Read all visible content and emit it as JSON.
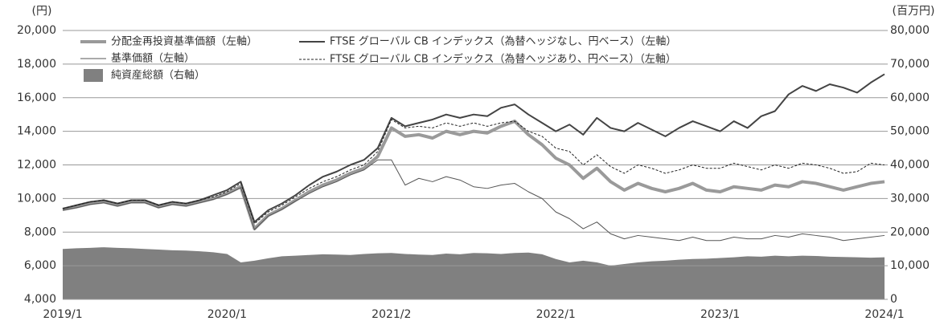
{
  "chart_data": {
    "type": "line",
    "y_unit": "(円)",
    "y2_unit": "(百万円)",
    "categories": [
      "2019/1",
      null,
      null,
      null,
      null,
      null,
      null,
      null,
      null,
      null,
      null,
      null,
      "2020/1",
      null,
      null,
      null,
      null,
      null,
      null,
      null,
      null,
      null,
      null,
      null,
      "2021/2",
      null,
      null,
      null,
      null,
      null,
      null,
      null,
      null,
      null,
      null,
      null,
      "2022/1",
      null,
      null,
      null,
      null,
      null,
      null,
      null,
      null,
      null,
      null,
      null,
      "2023/1",
      null,
      null,
      null,
      null,
      null,
      null,
      null,
      null,
      null,
      null,
      null,
      "2024/1"
    ],
    "ylim": [
      4000,
      20000
    ],
    "yticks": [
      {
        "value": 4000,
        "label": "4,000"
      },
      {
        "value": 6000,
        "label": "6,000"
      },
      {
        "value": 8000,
        "label": "8,000"
      },
      {
        "value": 10000,
        "label": "10,000"
      },
      {
        "value": 12000,
        "label": "12,000"
      },
      {
        "value": 14000,
        "label": "14,000"
      },
      {
        "value": 16000,
        "label": "16,000"
      },
      {
        "value": 18000,
        "label": "18,000"
      },
      {
        "value": 20000,
        "label": "20,000"
      }
    ],
    "y2lim": [
      0,
      80000
    ],
    "y2ticks": [
      0,
      {
        "value": 10000,
        "label": "10,000"
      },
      {
        "value": 20000,
        "label": "20,000"
      },
      {
        "value": 30000,
        "label": "30,000"
      },
      {
        "value": 40000,
        "label": "40,000"
      },
      {
        "value": 50000,
        "label": "50,000"
      },
      {
        "value": 60000,
        "label": "60,000"
      },
      {
        "value": 70000,
        "label": "70,000"
      },
      {
        "value": 80000,
        "label": "80,000"
      }
    ],
    "grid": true,
    "series": [
      {
        "name": "分配金再投資基準価額（左軸）",
        "color": "#9a9a9a",
        "line_width": 4,
        "dashed": false,
        "values": [
          9350,
          9500,
          9700,
          9800,
          9600,
          9800,
          9800,
          9500,
          9700,
          9600,
          9800,
          10000,
          10300,
          10700,
          8200,
          9000,
          9400,
          9900,
          10400,
          10800,
          11100,
          11500,
          11800,
          12500,
          14200,
          13700,
          13800,
          13600,
          14000,
          13800,
          14000,
          13900,
          14300,
          14600,
          13800,
          13200,
          12400,
          12000,
          11200,
          11800,
          11000,
          10500,
          10900,
          10600,
          10400,
          10600,
          10900,
          10500,
          10400,
          10700,
          10600,
          10500,
          10800,
          10700,
          11000,
          10900,
          10700,
          10500,
          10700,
          10900,
          11000
        ]
      },
      {
        "name": "基準価額（左軸）",
        "color": "#555555",
        "line_width": 1,
        "dashed": false,
        "values": [
          9300,
          9450,
          9650,
          9750,
          9550,
          9750,
          9750,
          9450,
          9650,
          9550,
          9750,
          9950,
          10250,
          10650,
          8150,
          8950,
          9350,
          9850,
          10300,
          10700,
          11000,
          11400,
          11700,
          12300,
          12300,
          10800,
          11200,
          11000,
          11300,
          11100,
          10700,
          10600,
          10800,
          10900,
          10400,
          10000,
          9200,
          8800,
          8200,
          8600,
          7900,
          7600,
          7800,
          7700,
          7600,
          7500,
          7700,
          7500,
          7500,
          7700,
          7600,
          7600,
          7800,
          7700,
          7900,
          7800,
          7700,
          7500,
          7600,
          7700,
          7800
        ]
      },
      {
        "name": "純資産総額（右軸）",
        "color": "#808080",
        "type": "area",
        "axis": "y2",
        "values": [
          15000,
          15200,
          15300,
          15500,
          15300,
          15200,
          15000,
          14800,
          14600,
          14500,
          14300,
          14000,
          13500,
          11000,
          11500,
          12200,
          12800,
          13000,
          13200,
          13400,
          13300,
          13200,
          13500,
          13700,
          13800,
          13500,
          13300,
          13200,
          13600,
          13400,
          13800,
          13700,
          13500,
          13800,
          13900,
          13400,
          12000,
          11000,
          11500,
          11000,
          10000,
          10500,
          11000,
          11300,
          11500,
          11800,
          12000,
          12100,
          12300,
          12500,
          12800,
          12700,
          13000,
          12800,
          13000,
          12900,
          12700,
          12600,
          12500,
          12400,
          12500
        ]
      },
      {
        "name": "FTSE グローバル CB インデックス（為替ヘッジなし、円ベース）（左軸）",
        "color": "#444444",
        "line_width": 2,
        "dashed": false,
        "values": [
          9400,
          9600,
          9800,
          9900,
          9700,
          9900,
          9900,
          9600,
          9800,
          9700,
          9900,
          10200,
          10500,
          11000,
          8600,
          9300,
          9700,
          10200,
          10800,
          11300,
          11600,
          12000,
          12300,
          13000,
          14800,
          14300,
          14500,
          14700,
          15000,
          14800,
          15000,
          14900,
          15400,
          15600,
          15000,
          14500,
          14000,
          14400,
          13800,
          14800,
          14200,
          14000,
          14500,
          14100,
          13700,
          14200,
          14600,
          14300,
          14000,
          14600,
          14200,
          14900,
          15200,
          16200,
          16700,
          16400,
          16800,
          16600,
          16300,
          16900,
          17400
        ]
      },
      {
        "name": "FTSE グローバル CB インデックス（為替ヘッジあり、円ベース）（左軸）",
        "color": "#222222",
        "line_width": 1,
        "dashed": true,
        "values": [
          9400,
          9600,
          9800,
          9900,
          9700,
          9900,
          9900,
          9600,
          9800,
          9700,
          9900,
          10100,
          10400,
          10900,
          8500,
          9200,
          9600,
          10100,
          10600,
          11000,
          11300,
          11700,
          12000,
          12800,
          14700,
          14200,
          14300,
          14200,
          14500,
          14300,
          14500,
          14300,
          14500,
          14600,
          14000,
          13700,
          13000,
          12800,
          12000,
          12600,
          11900,
          11500,
          12000,
          11800,
          11500,
          11700,
          12000,
          11800,
          11800,
          12100,
          11900,
          11700,
          12000,
          11800,
          12100,
          12000,
          11800,
          11500,
          11600,
          12100,
          12000
        ]
      }
    ]
  }
}
